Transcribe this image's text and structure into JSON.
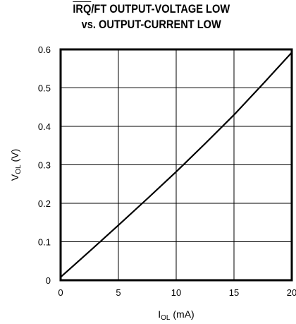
{
  "chart_data": {
    "type": "line",
    "title_overlined": "IRQ",
    "title_rest": "/FT OUTPUT-VOLTAGE LOW",
    "title_line2": "vs. OUTPUT-CURRENT LOW",
    "xlabel_main": "I",
    "xlabel_sub": "OL",
    "xlabel_unit": " (mA)",
    "ylabel_main": "V",
    "ylabel_sub": "OL",
    "ylabel_unit": " (V)",
    "xlim": [
      0,
      20
    ],
    "ylim": [
      0,
      0.6
    ],
    "xticks": [
      "0",
      "5",
      "10",
      "15",
      "20"
    ],
    "yticks": [
      "0",
      "0.1",
      "0.2",
      "0.3",
      "0.4",
      "0.5",
      "0.6"
    ],
    "grid": true,
    "series": [
      {
        "x": [
          0,
          2.5,
          5,
          7.5,
          10,
          12.5,
          15,
          17.5,
          20
        ],
        "y": [
          0.008,
          0.075,
          0.143,
          0.212,
          0.282,
          0.355,
          0.43,
          0.51,
          0.592
        ],
        "color": "#000000"
      }
    ]
  }
}
